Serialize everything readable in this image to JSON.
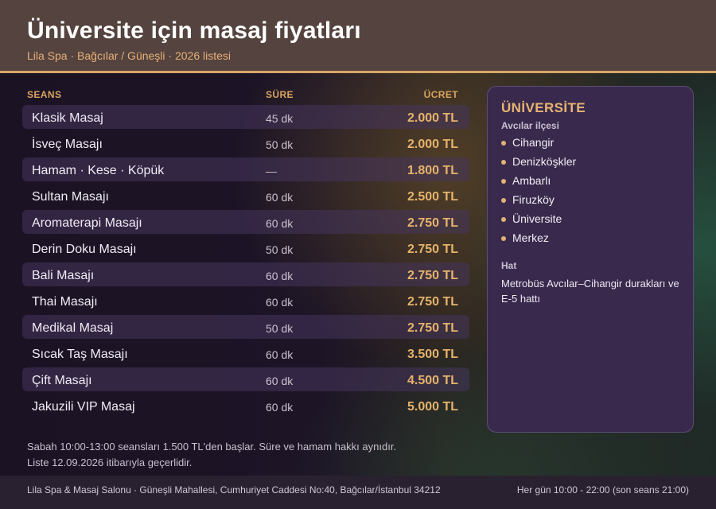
{
  "header": {
    "title": "Üniversite için masaj fiyatları",
    "subtitle": "Lila Spa · Bağcılar / Güneşli · 2026 listesi"
  },
  "table": {
    "columns": {
      "service": "SEANS",
      "duration": "SÜRE",
      "price": "ÜCRET"
    },
    "rows": [
      {
        "name": "Klasik Masaj",
        "duration": "45 dk",
        "price": "2.000 TL"
      },
      {
        "name": "İsveç Masajı",
        "duration": "50 dk",
        "price": "2.000 TL"
      },
      {
        "name": "Hamam · Kese · Köpük",
        "duration": "—",
        "price": "1.800 TL"
      },
      {
        "name": "Sultan Masajı",
        "duration": "60 dk",
        "price": "2.500 TL"
      },
      {
        "name": "Aromaterapi Masajı",
        "duration": "60 dk",
        "price": "2.750 TL"
      },
      {
        "name": "Derin Doku Masajı",
        "duration": "50 dk",
        "price": "2.750 TL"
      },
      {
        "name": "Bali Masajı",
        "duration": "60 dk",
        "price": "2.750 TL"
      },
      {
        "name": "Thai Masajı",
        "duration": "60 dk",
        "price": "2.750 TL"
      },
      {
        "name": "Medikal Masaj",
        "duration": "50 dk",
        "price": "2.750 TL"
      },
      {
        "name": "Sıcak Taş Masajı",
        "duration": "60 dk",
        "price": "3.500 TL"
      },
      {
        "name": "Çift Masajı",
        "duration": "60 dk",
        "price": "4.500 TL"
      },
      {
        "name": "Jakuzili VIP Masaj",
        "duration": "60 dk",
        "price": "5.000 TL"
      }
    ]
  },
  "panel": {
    "title": "ÜNİVERSİTE",
    "subtitle": "Avcılar ilçesi",
    "stops": [
      "Cihangir",
      "Denizköşkler",
      "Ambarlı",
      "Firuzköy",
      "Üniversite",
      "Merkez"
    ],
    "line_label": "Hat",
    "line_text": "Metrobüs Avcılar–Cihangir durakları ve E-5 hattı"
  },
  "notes": {
    "line1": "Sabah 10:00-13:00 seansları 1.500 TL'den başlar. Süre ve hamam hakkı aynıdır.",
    "line2": "Liste 12.09.2026 itibarıyla geçerlidir."
  },
  "footer": {
    "address": "Lila Spa & Masaj Salonu · Güneşli Mahallesi, Cumhuriyet Caddesi No:40, Bağcılar/İstanbul 34212",
    "hours": "Her gün 10:00 - 22:00 (son seans 21:00)"
  },
  "colors": {
    "accent": "#d7a667",
    "header_bg": "#54433e",
    "panel_bg": "#392a4d",
    "price": "#e6b36b"
  },
  "icons": {
    "stop_marker": "dot-bullet-icon"
  }
}
